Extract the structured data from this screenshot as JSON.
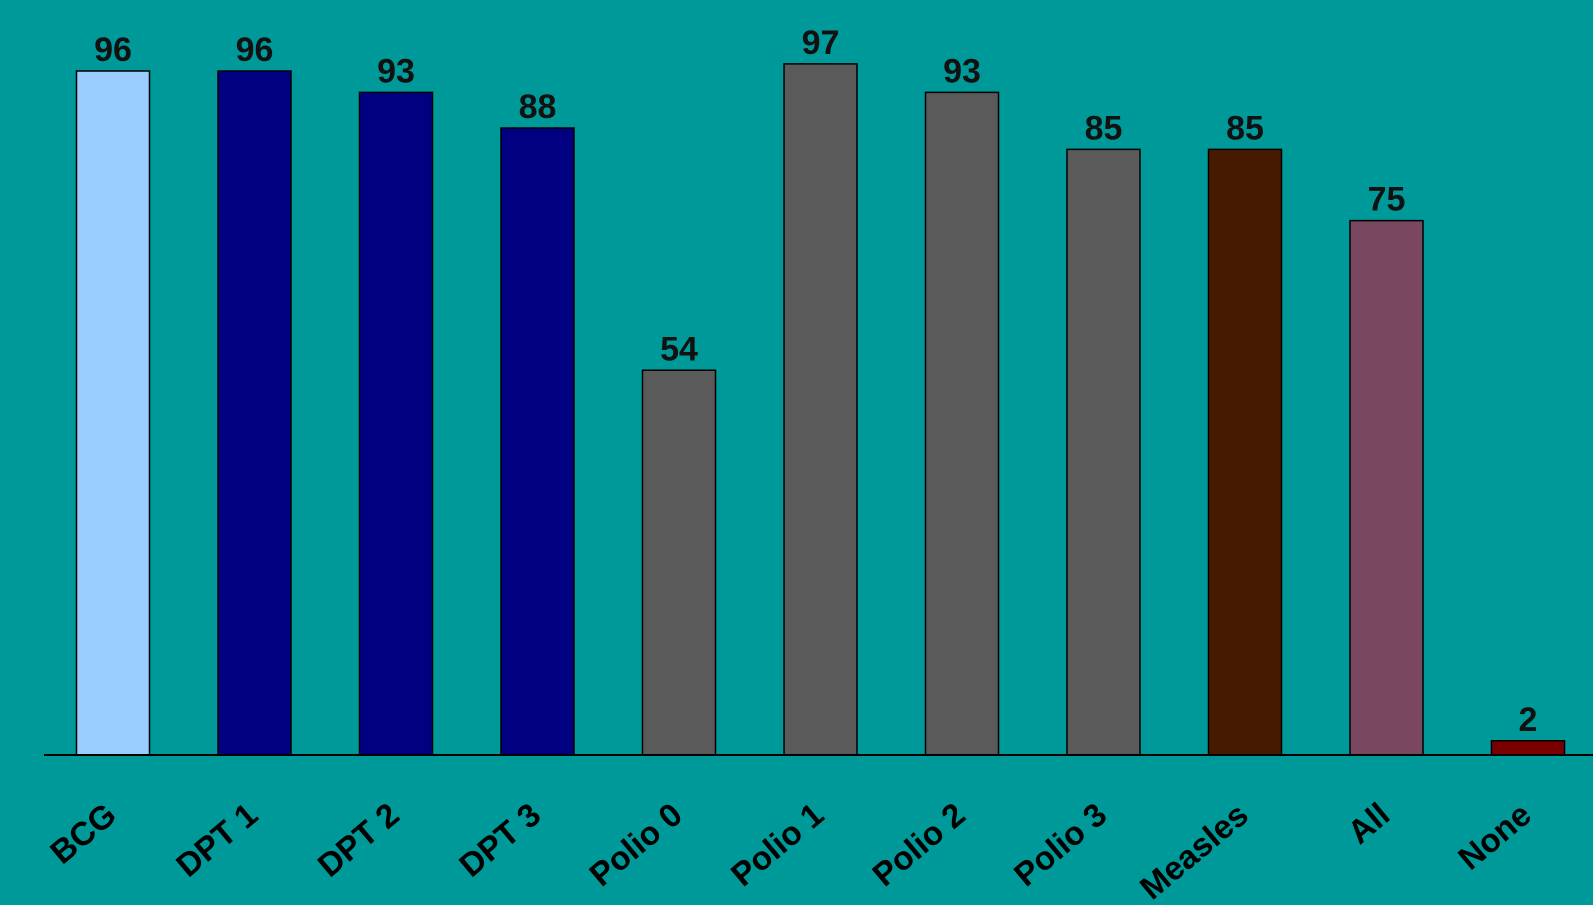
{
  "chart_data": {
    "type": "bar",
    "categories": [
      "BCG",
      "DPT 1",
      "DPT 2",
      "DPT 3",
      "Polio 0",
      "Polio 1",
      "Polio 2",
      "Polio 3",
      "Measles",
      "All",
      "None"
    ],
    "values": [
      96,
      96,
      93,
      88,
      54,
      97,
      93,
      85,
      85,
      75,
      2
    ],
    "bar_colors": [
      "#99CCFF",
      "#000080",
      "#000080",
      "#000080",
      "#5A5A5A",
      "#5A5A5A",
      "#5A5A5A",
      "#5A5A5A",
      "#451A00",
      "#7A4760",
      "#7A0000"
    ],
    "ylim": [
      0,
      100
    ],
    "grid": false,
    "legend": "none",
    "title": "",
    "xlabel": "",
    "ylabel": ""
  },
  "colors": {
    "background": "#009999",
    "axis": "#000000",
    "label_text": "#111111"
  }
}
